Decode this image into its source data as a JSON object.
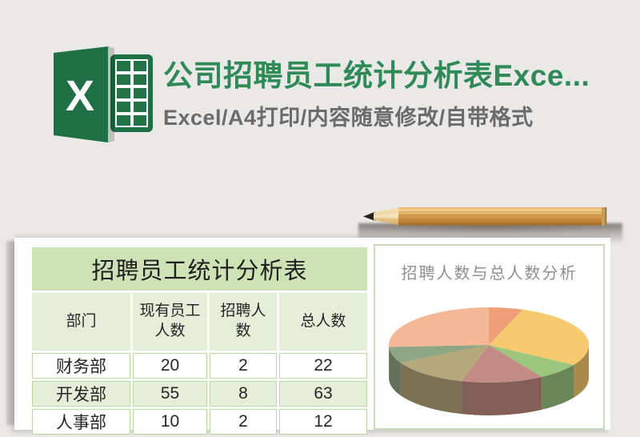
{
  "page": {
    "background": "#eae9e7"
  },
  "header": {
    "logo_label": "X",
    "title": "公司招聘员工统计分析表Exce...",
    "subtitle": "Excel/A4打印/内容随意修改/自带格式",
    "colors": {
      "brand_green": "#217346",
      "title_green": "#2f8a58",
      "subtitle_gray": "#6b6b6b"
    }
  },
  "paper": {
    "table": {
      "title": "招聘员工统计分析表",
      "headers": [
        "部门",
        "现有员工\n人数",
        "招聘人\n数",
        "总人数"
      ],
      "rows": [
        [
          "财务部",
          "20",
          "2",
          "22"
        ],
        [
          "开发部",
          "55",
          "8",
          "63"
        ],
        [
          "人事部",
          "10",
          "2",
          "12"
        ]
      ],
      "colors": {
        "title_bg": "#cde3b5",
        "header_bg": "#e4efd9",
        "row_bg": "#ffffff",
        "row_alt_bg": "#e4efd9",
        "grid_line": "#b9d8a2",
        "text": "#262626"
      }
    }
  },
  "chart_data": {
    "type": "pie",
    "three_d": true,
    "title": "招聘人数与总人数分析",
    "title_color": "#8f8f8f",
    "labels_visible": false,
    "legend": "none",
    "start_angle_deg": 0,
    "direction": "clockwise",
    "slices": [
      {
        "color": "#f0a078",
        "angle_deg": 20
      },
      {
        "color": "#f8ca70",
        "angle_deg": 102
      },
      {
        "color": "#9cc57e",
        "angle_deg": 26
      },
      {
        "color": "#c28b83",
        "angle_deg": 48
      },
      {
        "color": "#b5a87a",
        "angle_deg": 46
      },
      {
        "color": "#8fa684",
        "angle_deg": 25
      },
      {
        "color": "#f5b897",
        "angle_deg": 93
      }
    ]
  }
}
